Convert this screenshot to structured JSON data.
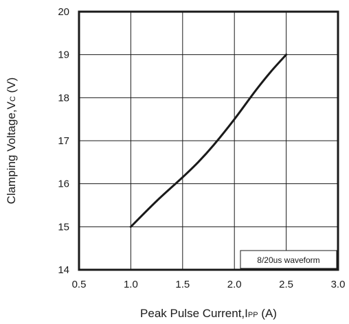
{
  "chart_data": {
    "type": "line",
    "xlabel_main": "Peak Pulse Current,I",
    "xlabel_sub": "PP",
    "xlabel_unit": " (A)",
    "ylabel_main": "Clamping Voltage,V",
    "ylabel_sub": "C",
    "ylabel_unit": " (V)",
    "xlim": [
      0.5,
      3.0
    ],
    "ylim": [
      14,
      20
    ],
    "x_ticks": [
      0.5,
      1.0,
      1.5,
      2.0,
      2.5,
      3.0
    ],
    "x_tick_labels": [
      "0.5",
      "1.0",
      "1.5",
      "2.0",
      "2.5",
      "3.0"
    ],
    "y_ticks": [
      14,
      15,
      16,
      17,
      18,
      19,
      20
    ],
    "y_tick_labels": [
      "14",
      "15",
      "16",
      "17",
      "18",
      "19",
      "20"
    ],
    "grid": true,
    "annotation": "8/20us waveform",
    "line_color": "#1a1a1a",
    "series": [
      {
        "x": [
          1.0,
          1.25,
          1.5,
          1.65,
          1.8,
          2.0,
          2.2,
          2.35,
          2.5
        ],
        "y": [
          15.0,
          15.6,
          16.15,
          16.5,
          16.9,
          17.5,
          18.15,
          18.6,
          19.0
        ]
      }
    ]
  }
}
